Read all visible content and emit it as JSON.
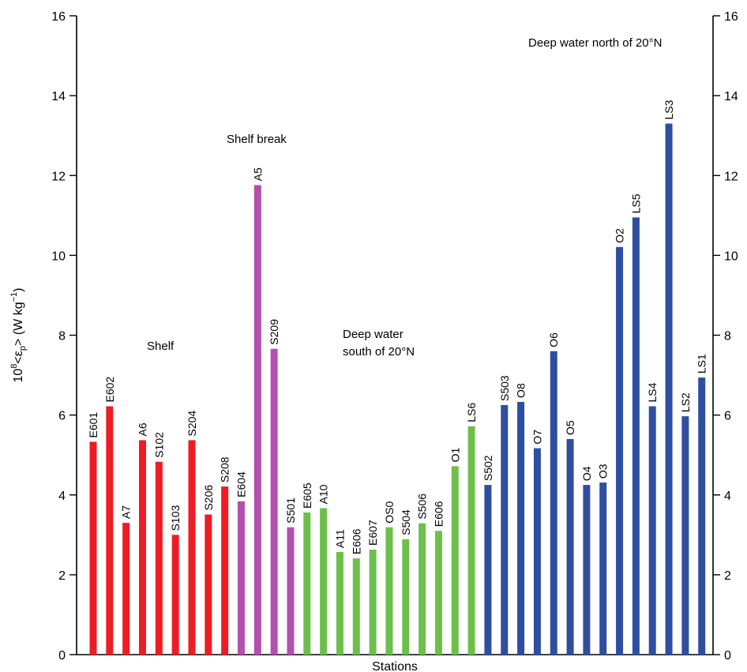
{
  "chart_data": {
    "type": "bar",
    "xlabel": "Stations",
    "ylabel_parts": {
      "pre": "10",
      "sup": "8",
      "mid": "<ε",
      "sub": "p",
      "post": "> (W kg",
      "sup2": "−1",
      "end": ")"
    },
    "ylim": [
      0,
      16
    ],
    "yticks": [
      0,
      2,
      4,
      6,
      8,
      10,
      12,
      14,
      16
    ],
    "grid": false,
    "secondary_y_axis": true,
    "groups": [
      {
        "name": "Shelf",
        "color": "#ee1c24"
      },
      {
        "name": "Shelf break",
        "color": "#b44fae"
      },
      {
        "name": "Deep water south of 20°N",
        "name_lines": [
          "Deep water",
          "south of 20°N"
        ],
        "color": "#6cc04a"
      },
      {
        "name": "Deep water north of 20°N",
        "color": "#2e4ea1"
      }
    ],
    "bars": [
      {
        "station": "E601",
        "value": 5.33,
        "group": 0
      },
      {
        "station": "E602",
        "value": 6.22,
        "group": 0
      },
      {
        "station": "A7",
        "value": 3.3,
        "group": 0
      },
      {
        "station": "A6",
        "value": 5.37,
        "group": 0
      },
      {
        "station": "S102",
        "value": 4.83,
        "group": 0
      },
      {
        "station": "S103",
        "value": 3.0,
        "group": 0
      },
      {
        "station": "S204",
        "value": 5.37,
        "group": 0
      },
      {
        "station": "S206",
        "value": 3.51,
        "group": 0
      },
      {
        "station": "S208",
        "value": 4.21,
        "group": 0
      },
      {
        "station": "E604",
        "value": 3.84,
        "group": 1
      },
      {
        "station": "A5",
        "value": 11.76,
        "group": 1
      },
      {
        "station": "S209",
        "value": 7.66,
        "group": 1
      },
      {
        "station": "S501",
        "value": 3.19,
        "group": 1
      },
      {
        "station": "E605",
        "value": 3.56,
        "group": 2
      },
      {
        "station": "A10",
        "value": 3.67,
        "group": 2
      },
      {
        "station": "A11",
        "value": 2.57,
        "group": 2
      },
      {
        "station": "E606",
        "value": 2.41,
        "group": 2
      },
      {
        "station": "E607",
        "value": 2.63,
        "group": 2
      },
      {
        "station": "OS0",
        "value": 3.19,
        "group": 2
      },
      {
        "station": "S504",
        "value": 2.89,
        "group": 2
      },
      {
        "station": "S506",
        "value": 3.29,
        "group": 2
      },
      {
        "station": "E606",
        "value": 3.1,
        "group": 2
      },
      {
        "station": "O1",
        "value": 4.72,
        "group": 2
      },
      {
        "station": "LS6",
        "value": 5.72,
        "group": 2
      },
      {
        "station": "S502",
        "value": 4.25,
        "group": 3
      },
      {
        "station": "S503",
        "value": 6.25,
        "group": 3
      },
      {
        "station": "O8",
        "value": 6.33,
        "group": 3
      },
      {
        "station": "O7",
        "value": 5.17,
        "group": 3
      },
      {
        "station": "O6",
        "value": 7.6,
        "group": 3
      },
      {
        "station": "O5",
        "value": 5.4,
        "group": 3
      },
      {
        "station": "O4",
        "value": 4.25,
        "group": 3
      },
      {
        "station": "O3",
        "value": 4.31,
        "group": 3
      },
      {
        "station": "O2",
        "value": 10.21,
        "group": 3
      },
      {
        "station": "LS5",
        "value": 10.95,
        "group": 3
      },
      {
        "station": "LS4",
        "value": 6.22,
        "group": 3
      },
      {
        "station": "LS3",
        "value": 13.3,
        "group": 3
      },
      {
        "station": "LS2",
        "value": 5.97,
        "group": 3
      },
      {
        "station": "LS1",
        "value": 6.94,
        "group": 3
      }
    ]
  }
}
